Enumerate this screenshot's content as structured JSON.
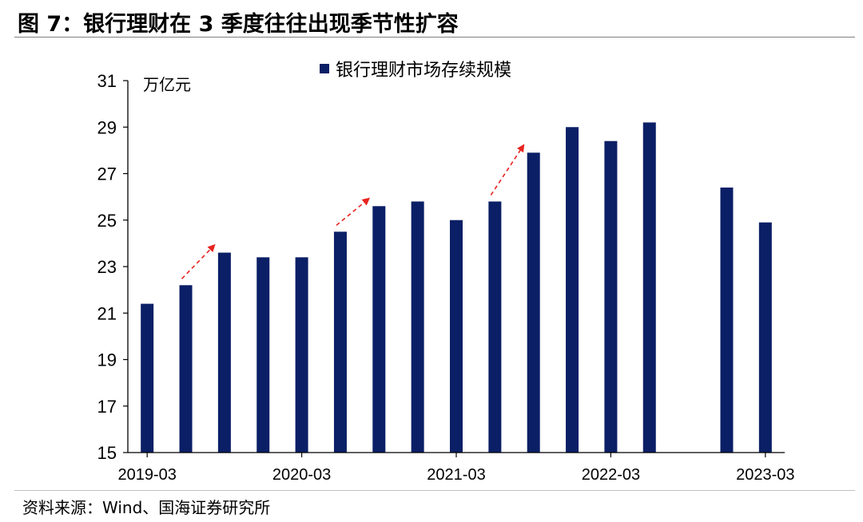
{
  "title": "图 7：银行理财在 3 季度往往出现季节性扩容",
  "source": "资料来源：Wind、国海证券研究所",
  "colors": {
    "bar": "#0b1f66",
    "arrow": "#e8231f",
    "axis": "#000000"
  },
  "chart_data": {
    "type": "bar",
    "title": "",
    "xlabel": "",
    "ylabel": "万亿元",
    "ylim": [
      15,
      31
    ],
    "yticks": [
      15,
      17,
      19,
      21,
      23,
      25,
      27,
      29,
      31
    ],
    "grid": false,
    "legend_position": "top-center",
    "categories": [
      "2019-03",
      "2019-06",
      "2019-09",
      "2019-12",
      "2020-03",
      "2020-06",
      "2020-09",
      "2020-12",
      "2021-03",
      "2021-06",
      "2021-09",
      "2021-12",
      "2022-03",
      "2022-06",
      "2022-09",
      "2022-12",
      "2023-03"
    ],
    "xtick_labels": [
      "2019-03",
      "",
      "",
      "",
      "2020-03",
      "",
      "",
      "",
      "2021-03",
      "",
      "",
      "",
      "2022-03",
      "",
      "",
      "",
      "2023-03"
    ],
    "series": [
      {
        "name": "银行理财市场存续规模",
        "values": [
          21.4,
          22.2,
          23.6,
          23.4,
          23.4,
          24.5,
          25.6,
          25.8,
          25.0,
          25.8,
          27.9,
          29.0,
          28.4,
          29.2,
          null,
          26.4,
          24.9
        ]
      }
    ],
    "annotations": [
      {
        "type": "arrow",
        "from": "2019-06",
        "to": "2019-09"
      },
      {
        "type": "arrow",
        "from": "2020-06",
        "to": "2020-09"
      },
      {
        "type": "arrow",
        "from": "2021-06",
        "to": "2021-09"
      }
    ]
  }
}
